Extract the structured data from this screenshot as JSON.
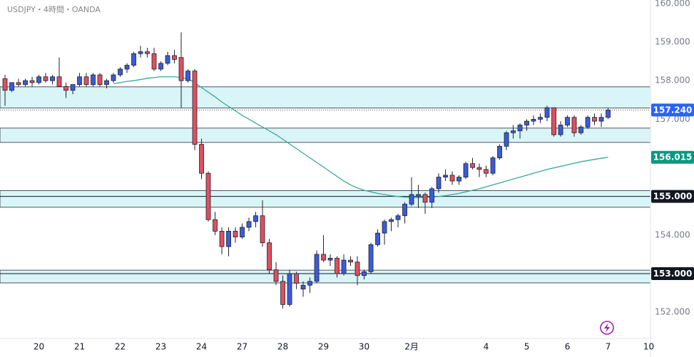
{
  "chart_data": {
    "type": "candlestick",
    "title": "USDJPY・4時間・OANDA",
    "up_color": "#3b5bdb",
    "down_color": "#e04f5f",
    "open": [
      158.05,
      157.75,
      157.95,
      157.9,
      158.0,
      157.95,
      158.1,
      158.0,
      158.1,
      157.85,
      157.75,
      157.9,
      158.1,
      157.9,
      158.15,
      157.9,
      158.0,
      158.15,
      158.3,
      158.4,
      158.7,
      158.75,
      158.7,
      158.3,
      158.45,
      158.65,
      158.6,
      158.0,
      158.25,
      156.35,
      155.6,
      154.4,
      154.1,
      153.7,
      154.1,
      153.95,
      154.2,
      154.35,
      154.5,
      153.8,
      153.1,
      152.8,
      152.2,
      153.0,
      152.6,
      152.7,
      152.8,
      153.5,
      153.35,
      153.4,
      153.0,
      153.35,
      153.3,
      152.95,
      153.05,
      153.75,
      154.05,
      154.35,
      154.4,
      154.5,
      154.8,
      155.0,
      155.05,
      154.85,
      155.2,
      155.5,
      155.55,
      155.4,
      155.5,
      155.85,
      155.75,
      155.7,
      155.6,
      156.0,
      156.3,
      156.65,
      156.7,
      156.85,
      156.95,
      157.0,
      157.05,
      157.3,
      156.6,
      156.85,
      157.05,
      156.65,
      156.8,
      157.05,
      156.95,
      157.05
    ],
    "high": [
      158.15,
      157.95,
      158.05,
      158.05,
      158.1,
      158.15,
      158.2,
      158.15,
      158.6,
      157.95,
      157.9,
      158.2,
      158.2,
      158.2,
      158.2,
      158.05,
      158.2,
      158.35,
      158.45,
      158.75,
      158.9,
      158.85,
      158.85,
      158.5,
      158.75,
      158.8,
      159.25,
      158.3,
      158.3,
      156.5,
      155.65,
      154.6,
      154.2,
      154.2,
      154.2,
      154.3,
      154.45,
      154.6,
      154.9,
      153.9,
      153.3,
      152.95,
      153.1,
      153.05,
      152.8,
      152.9,
      153.6,
      154.0,
      153.5,
      153.45,
      153.5,
      153.45,
      153.45,
      153.1,
      153.8,
      154.15,
      154.4,
      154.45,
      154.55,
      154.85,
      155.5,
      155.3,
      155.1,
      155.25,
      155.6,
      155.7,
      155.65,
      155.55,
      155.9,
      156.0,
      155.85,
      155.8,
      156.05,
      156.35,
      156.7,
      156.85,
      156.9,
      157.0,
      157.1,
      157.15,
      157.35,
      157.3,
      156.95,
      157.1,
      157.1,
      156.85,
      157.1,
      157.15,
      157.15,
      157.3
    ],
    "low": [
      157.35,
      157.7,
      157.85,
      157.85,
      157.85,
      157.9,
      157.95,
      157.9,
      157.9,
      157.55,
      157.65,
      157.85,
      157.85,
      157.85,
      157.85,
      157.8,
      157.95,
      158.1,
      158.2,
      158.35,
      158.6,
      158.6,
      158.25,
      158.25,
      158.4,
      158.45,
      157.3,
      157.95,
      156.2,
      155.45,
      154.35,
      154.0,
      153.5,
      153.45,
      153.8,
      153.9,
      154.1,
      154.2,
      153.7,
      153.0,
      152.7,
      152.1,
      152.15,
      152.6,
      152.4,
      152.5,
      152.75,
      153.3,
      153.2,
      152.9,
      152.95,
      153.2,
      152.7,
      152.85,
      153.0,
      153.7,
      153.75,
      154.1,
      154.2,
      154.3,
      154.75,
      154.7,
      154.55,
      154.7,
      155.1,
      155.4,
      155.3,
      155.3,
      155.45,
      155.7,
      155.5,
      155.5,
      155.55,
      155.95,
      156.2,
      156.5,
      156.5,
      156.7,
      156.85,
      156.9,
      156.95,
      156.55,
      156.55,
      156.8,
      156.55,
      156.6,
      156.75,
      156.85,
      156.8,
      157.0
    ],
    "close": [
      157.75,
      157.95,
      157.9,
      158.0,
      157.95,
      158.1,
      158.0,
      158.1,
      157.85,
      157.75,
      157.9,
      158.1,
      157.9,
      158.15,
      157.9,
      158.0,
      158.15,
      158.3,
      158.4,
      158.7,
      158.75,
      158.7,
      158.3,
      158.45,
      158.65,
      158.55,
      158.0,
      158.25,
      156.35,
      155.6,
      154.4,
      154.1,
      153.7,
      154.1,
      153.95,
      154.2,
      154.35,
      154.5,
      153.8,
      153.1,
      152.8,
      152.2,
      153.0,
      152.75,
      152.7,
      152.8,
      153.5,
      153.35,
      153.4,
      153.0,
      153.35,
      153.3,
      152.95,
      153.05,
      153.75,
      154.05,
      154.35,
      154.4,
      154.5,
      154.8,
      155.05,
      155.05,
      154.85,
      155.2,
      155.5,
      155.55,
      155.4,
      155.5,
      155.85,
      155.75,
      155.7,
      155.6,
      156.0,
      156.3,
      156.65,
      156.7,
      156.85,
      156.95,
      157.0,
      157.05,
      157.3,
      156.6,
      156.85,
      157.05,
      156.65,
      156.8,
      157.05,
      156.95,
      157.05,
      157.24
    ],
    "series": [
      {
        "color": "#3aa89a",
        "values": [
          null,
          null,
          null,
          null,
          null,
          null,
          null,
          null,
          null,
          null,
          null,
          null,
          null,
          null,
          null,
          null,
          157.92,
          157.95,
          157.98,
          158.0,
          158.03,
          158.06,
          158.08,
          158.1,
          158.1,
          158.1,
          158.08,
          158.05,
          157.95,
          157.82,
          157.7,
          157.58,
          157.45,
          157.33,
          157.22,
          157.1,
          157.0,
          156.9,
          156.8,
          156.7,
          156.6,
          156.48,
          156.36,
          156.24,
          156.12,
          156.0,
          155.88,
          155.76,
          155.64,
          155.52,
          155.4,
          155.3,
          155.22,
          155.16,
          155.12,
          155.08,
          155.05,
          155.02,
          155.0,
          154.98,
          154.97,
          154.97,
          154.97,
          154.98,
          155.0,
          155.02,
          155.05,
          155.08,
          155.12,
          155.16,
          155.2,
          155.25,
          155.3,
          155.35,
          155.4,
          155.45,
          155.5,
          155.55,
          155.6,
          155.65,
          155.7,
          155.74,
          155.78,
          155.82,
          155.86,
          155.9,
          155.93,
          155.96,
          155.99,
          156.015
        ]
      }
    ],
    "zones": [
      {
        "low": 157.29,
        "high": 157.84
      },
      {
        "low": 156.4,
        "high": 156.77
      },
      {
        "low": 154.72,
        "high": 155.15
      },
      {
        "low": 152.76,
        "high": 153.09
      }
    ],
    "current_line": 157.24,
    "hlines": [
      155,
      153
    ],
    "badges": [
      {
        "value": 157.24,
        "label": "157.240",
        "color": "#2962ff"
      },
      {
        "value": 156.015,
        "label": "156.015",
        "color": "#089981"
      },
      {
        "value": 155,
        "label": "155.000",
        "color": "#131722"
      },
      {
        "value": 153,
        "label": "153.000",
        "color": "#131722"
      }
    ],
    "ylim": [
      151.32,
      160.09
    ],
    "yticks": [
      {
        "value": 152,
        "label": "152.000"
      },
      {
        "value": 153,
        "label": "153.000"
      },
      {
        "value": 154,
        "label": "154.000"
      },
      {
        "value": 155,
        "label": "155.000"
      },
      {
        "value": 156,
        "label": "156.000"
      },
      {
        "value": 157,
        "label": "157.000"
      },
      {
        "value": 158,
        "label": "158.000"
      },
      {
        "value": 159,
        "label": "159.000"
      },
      {
        "value": 160,
        "label": "160.000"
      }
    ],
    "xlim": [
      -0.74,
      95.26
    ],
    "xticks": [
      {
        "value": 5,
        "label": "20"
      },
      {
        "value": 11,
        "label": "21"
      },
      {
        "value": 17,
        "label": "22"
      },
      {
        "value": 23,
        "label": "23"
      },
      {
        "value": 29,
        "label": "24"
      },
      {
        "value": 35,
        "label": "27"
      },
      {
        "value": 41,
        "label": "28"
      },
      {
        "value": 47,
        "label": "29"
      },
      {
        "value": 53,
        "label": "30"
      },
      {
        "value": 60,
        "label": "2月"
      },
      {
        "value": 71,
        "label": "4"
      },
      {
        "value": 77,
        "label": "5"
      },
      {
        "value": 83,
        "label": "6"
      },
      {
        "value": 89,
        "label": "7"
      },
      {
        "value": 95,
        "label": "10"
      }
    ]
  }
}
